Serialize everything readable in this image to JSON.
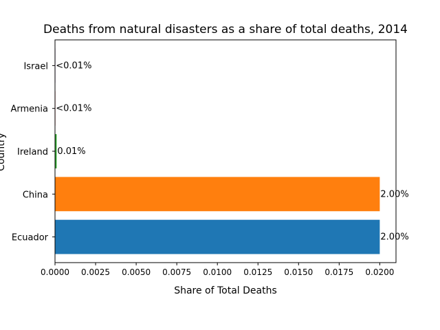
{
  "chart_data": {
    "type": "bar",
    "orientation": "horizontal",
    "title": "Deaths from natural disasters as a share of total deaths, 2014",
    "xlabel": "Share of Total Deaths",
    "ylabel": "Country",
    "xlim": [
      0,
      0.021
    ],
    "x_ticks": [
      "0.0000",
      "0.0025",
      "0.0050",
      "0.0075",
      "0.0100",
      "0.0125",
      "0.0150",
      "0.0175",
      "0.0200"
    ],
    "grid": false,
    "categories": [
      "Ecuador",
      "China",
      "Ireland",
      "Armenia",
      "Israel"
    ],
    "values": [
      0.02,
      0.02,
      0.0001,
      1e-05,
      1e-05
    ],
    "data_labels": [
      "2.00%",
      "2.00%",
      "0.01%",
      "<0.01%",
      "<0.01%"
    ],
    "colors": [
      "#1f77b4",
      "#ff7f0e",
      "#2ca02c",
      "#d62728",
      "#9467bd"
    ]
  }
}
